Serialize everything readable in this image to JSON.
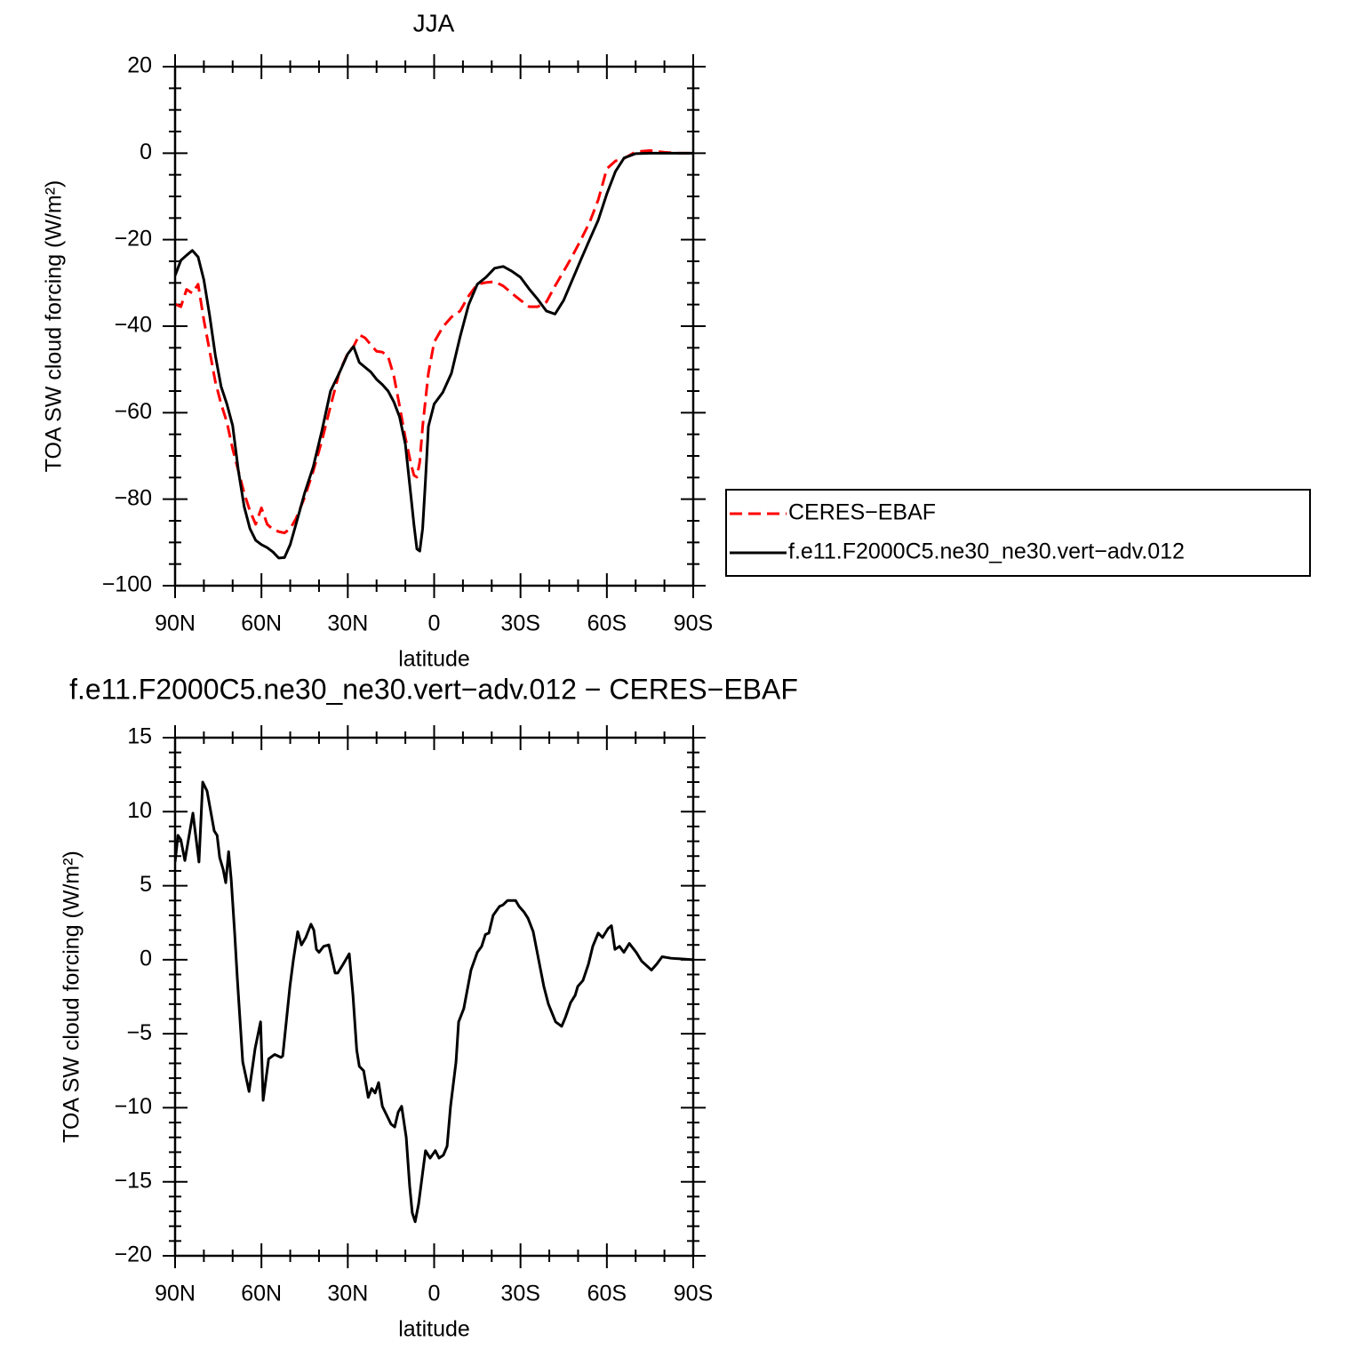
{
  "chart_data": [
    {
      "type": "line",
      "title": "JJA",
      "xlabel": "latitude",
      "ylabel": "TOA SW cloud forcing (W/m²)",
      "xlim": [
        90,
        -90
      ],
      "xticks": [
        {
          "value": 90,
          "label": "90N"
        },
        {
          "value": 60,
          "label": "60N"
        },
        {
          "value": 30,
          "label": "30N"
        },
        0,
        {
          "value": -30,
          "label": "30S"
        },
        {
          "value": -60,
          "label": "60S"
        },
        {
          "value": -90,
          "label": "90S"
        }
      ],
      "x_minor_divisions": 3,
      "ylim": [
        -100,
        20
      ],
      "yticks": [
        {
          "value": -100,
          "label": "−100"
        },
        {
          "value": -80,
          "label": "−80"
        },
        {
          "value": -60,
          "label": "−60"
        },
        {
          "value": -40,
          "label": "−40"
        },
        {
          "value": -20,
          "label": "−20"
        },
        0,
        20
      ],
      "y_minor_divisions": 4,
      "legend": "right",
      "x": [
        90,
        88,
        86,
        84,
        82,
        80,
        78,
        76,
        74,
        72,
        70,
        68,
        66,
        64,
        62,
        60,
        58,
        56,
        54,
        52,
        50,
        48,
        45,
        42,
        39,
        36,
        33,
        30,
        28,
        26,
        24,
        22,
        20,
        18,
        16,
        14,
        12,
        10,
        8,
        7,
        6,
        5,
        4,
        3,
        2,
        0,
        -3,
        -6,
        -9,
        -12,
        -15,
        -18,
        -21,
        -24,
        -27,
        -30,
        -33,
        -36,
        -39,
        -42,
        -45,
        -48,
        -51,
        -54,
        -57,
        -60,
        -63,
        -66,
        -70,
        -75,
        -80,
        -85,
        -90
      ],
      "series": [
        {
          "name": "CERES−EBAF",
          "color": "#ff0000",
          "dash": "dashed",
          "values": [
            -34.9,
            -35.5,
            -31.5,
            -32.4,
            -30.3,
            -38.6,
            -45.7,
            -52.9,
            -58,
            -62.2,
            -68.4,
            -73.5,
            -78.6,
            -82.7,
            -85.8,
            -82,
            -85.8,
            -87,
            -87.5,
            -87.8,
            -86.8,
            -84.5,
            -79.6,
            -73.5,
            -66.5,
            -58.5,
            -50.8,
            -46.2,
            -44.7,
            -42,
            -42.7,
            -44.3,
            -45.8,
            -46,
            -47,
            -51.5,
            -58.5,
            -65.8,
            -72,
            -74.5,
            -74.9,
            -71.4,
            -63.2,
            -57,
            -50.9,
            -43.7,
            -40.2,
            -37.9,
            -36.5,
            -33,
            -30.3,
            -29.9,
            -29.7,
            -30.7,
            -32.4,
            -34,
            -35.5,
            -35.5,
            -34.4,
            -30.7,
            -27.3,
            -23.8,
            -20,
            -16,
            -10.8,
            -3.6,
            -1.8,
            -1.2,
            0.3,
            0.6,
            0.2,
            0,
            0
          ]
        },
        {
          "name": "f.e11.F2000C5.ne30_ne30.vert−adv.012",
          "color": "#000000",
          "dash": "solid",
          "values": [
            -28.3,
            -24.8,
            -23.6,
            -22.5,
            -24,
            -29.3,
            -37.5,
            -46.8,
            -54,
            -58,
            -63,
            -73.5,
            -81.7,
            -86.8,
            -89.5,
            -90.5,
            -91.2,
            -92.2,
            -93.6,
            -93.5,
            -90.5,
            -85.8,
            -78.6,
            -72.5,
            -64.2,
            -55,
            -50.9,
            -46.4,
            -44.7,
            -48.4,
            -49.5,
            -50.6,
            -52.3,
            -53.5,
            -55,
            -57.5,
            -61,
            -67.3,
            -79.7,
            -86,
            -91.5,
            -92,
            -86.8,
            -75.5,
            -63.2,
            -58,
            -55.3,
            -50.9,
            -42.5,
            -35,
            -30.3,
            -28.7,
            -26.6,
            -26.2,
            -27.3,
            -28.7,
            -31.4,
            -33.8,
            -36.5,
            -37.2,
            -34,
            -29.3,
            -24.6,
            -20,
            -15.5,
            -9.4,
            -4.2,
            -1.1,
            -0.1,
            0,
            0,
            0,
            0
          ]
        }
      ]
    },
    {
      "type": "line",
      "title": "f.e11.F2000C5.ne30_ne30.vert−adv.012 − CERES−EBAF",
      "xlabel": "latitude",
      "ylabel": "TOA SW cloud forcing (W/m²)",
      "xlim": [
        90,
        -90
      ],
      "xticks": [
        {
          "value": 90,
          "label": "90N"
        },
        {
          "value": 60,
          "label": "60N"
        },
        {
          "value": 30,
          "label": "30N"
        },
        0,
        {
          "value": -30,
          "label": "30S"
        },
        {
          "value": -60,
          "label": "60S"
        },
        {
          "value": -90,
          "label": "90S"
        }
      ],
      "x_minor_divisions": 3,
      "ylim": [
        -20,
        15
      ],
      "yticks": [
        {
          "value": -20,
          "label": "−20"
        },
        {
          "value": -15,
          "label": "−15"
        },
        {
          "value": -10,
          "label": "−10"
        },
        {
          "value": -5,
          "label": "−5"
        },
        0,
        5,
        10,
        15
      ],
      "y_minor_divisions": 5,
      "color": "#000000",
      "x": [
        90,
        89,
        88,
        86.6,
        83.8,
        81.7,
        80.4,
        78.9,
        76.4,
        75.4,
        74.5,
        73.3,
        72.4,
        71.4,
        70.5,
        69.3,
        68.4,
        66.5,
        64.3,
        62.2,
        60.3,
        59.4,
        57.5,
        55.4,
        53.2,
        52.6,
        50.1,
        48.9,
        47.4,
        46.1,
        44.6,
        42.8,
        41.8,
        40.9,
        40,
        38.4,
        36.6,
        34.4,
        33.5,
        31.6,
        29.5,
        28.2,
        26.9,
        26,
        24.5,
        22.9,
        21.7,
        20.5,
        19.3,
        18,
        16.5,
        15,
        13.7,
        12.5,
        11.3,
        9.7,
        8.5,
        7.6,
        6.6,
        5.4,
        3,
        1.4,
        -0.4,
        -1.7,
        -3.2,
        -4.5,
        -5.7,
        -7.6,
        -8.5,
        -10.3,
        -12.8,
        -15,
        -16.5,
        -17.8,
        -19,
        -20.5,
        -22.7,
        -23.9,
        -25.5,
        -26.7,
        -28.3,
        -29.5,
        -31.3,
        -32.6,
        -34.4,
        -36.3,
        -38.1,
        -39.7,
        -42.2,
        -44.3,
        -45.6,
        -47.4,
        -49,
        -49.9,
        -51.7,
        -53.6,
        -55.1,
        -57,
        -58.5,
        -60.4,
        -61.6,
        -62.8,
        -64.4,
        -65.9,
        -67.8,
        -70.2,
        -72.1,
        -75.5,
        -77.3,
        -79.2,
        -82.3,
        -90
      ],
      "values": [
        6.6,
        8.4,
        8.1,
        6.7,
        9.9,
        6.6,
        12,
        11.4,
        8.7,
        8.4,
        6.9,
        6.1,
        5.2,
        7.3,
        5.4,
        1.8,
        -1.2,
        -6.9,
        -8.9,
        -6,
        -4.2,
        -9.5,
        -6.7,
        -6.4,
        -6.6,
        -6.5,
        -1.8,
        0,
        1.9,
        1,
        1.5,
        2.4,
        2,
        0.7,
        0.5,
        0.9,
        1,
        -0.9,
        -0.9,
        -0.3,
        0.4,
        -2.4,
        -6.1,
        -7.2,
        -7.5,
        -9.3,
        -8.7,
        -9,
        -8.3,
        -9.9,
        -10.5,
        -11.1,
        -11.3,
        -10.3,
        -9.9,
        -12,
        -15.3,
        -17.1,
        -17.7,
        -16.5,
        -12.9,
        -13.4,
        -12.9,
        -13.4,
        -13.2,
        -12.6,
        -9.9,
        -6.9,
        -4.2,
        -3.3,
        -0.7,
        0.5,
        0.9,
        1.7,
        1.8,
        3,
        3.6,
        3.7,
        4,
        4,
        4,
        3.6,
        3.2,
        2.8,
        1.9,
        0,
        -1.8,
        -3,
        -4.2,
        -4.5,
        -3.9,
        -2.9,
        -2.4,
        -1.8,
        -1.4,
        -0.3,
        0.9,
        1.8,
        1.5,
        2.1,
        2.3,
        0.7,
        0.9,
        0.5,
        1.1,
        0.5,
        -0.1,
        -0.7,
        -0.3,
        0.2,
        0.1,
        0
      ]
    }
  ]
}
